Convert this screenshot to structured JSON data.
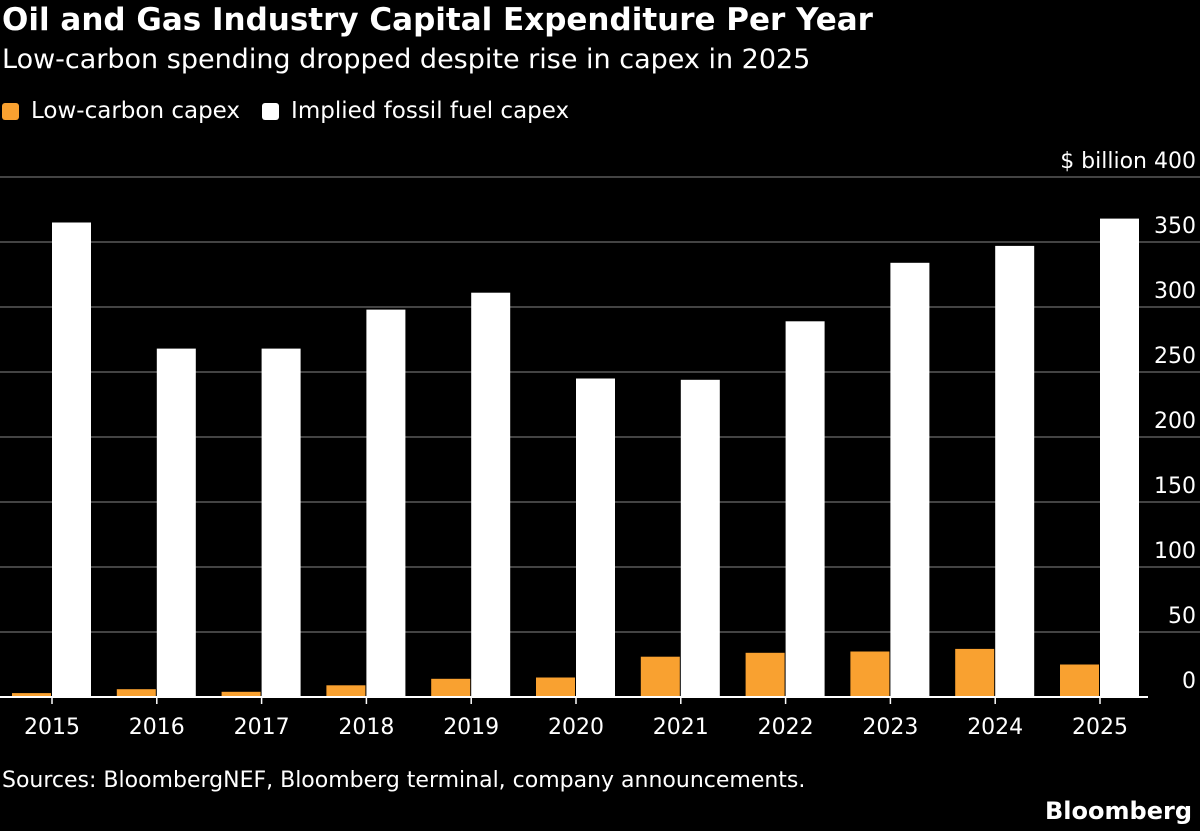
{
  "title": "Oil and Gas Industry Capital Expenditure Per Year",
  "subtitle": "Low-carbon spending dropped despite rise in capex in 2025",
  "source": "Sources: BloombergNEF, Bloomberg terminal, company announcements.",
  "brand": "Bloomberg",
  "colors": {
    "background": "#000000",
    "low_carbon": "#f9a130",
    "fossil": "#ffffff",
    "grid": "#6b6b6b",
    "axis": "#ffffff"
  },
  "chart_data": {
    "type": "bar",
    "title": "Oil and Gas Industry Capital Expenditure Per Year",
    "subtitle": "Low-carbon spending dropped despite rise in capex in 2025",
    "unit_label": "$ billion",
    "categories": [
      "2015",
      "2016",
      "2017",
      "2018",
      "2019",
      "2020",
      "2021",
      "2022",
      "2023",
      "2024",
      "2025"
    ],
    "series": [
      {
        "name": "Low-carbon capex",
        "color": "#f9a130",
        "values": [
          3,
          6,
          4,
          9,
          14,
          15,
          31,
          34,
          35,
          37,
          25
        ]
      },
      {
        "name": "Implied fossil fuel capex",
        "color": "#ffffff",
        "values": [
          365,
          268,
          268,
          298,
          311,
          245,
          244,
          289,
          334,
          347,
          368
        ]
      }
    ],
    "ylim": [
      0,
      400
    ],
    "yticks": [
      0,
      50,
      100,
      150,
      200,
      250,
      300,
      350,
      400
    ],
    "grid": true,
    "legend_position": "top-left",
    "y_axis_side": "right"
  }
}
